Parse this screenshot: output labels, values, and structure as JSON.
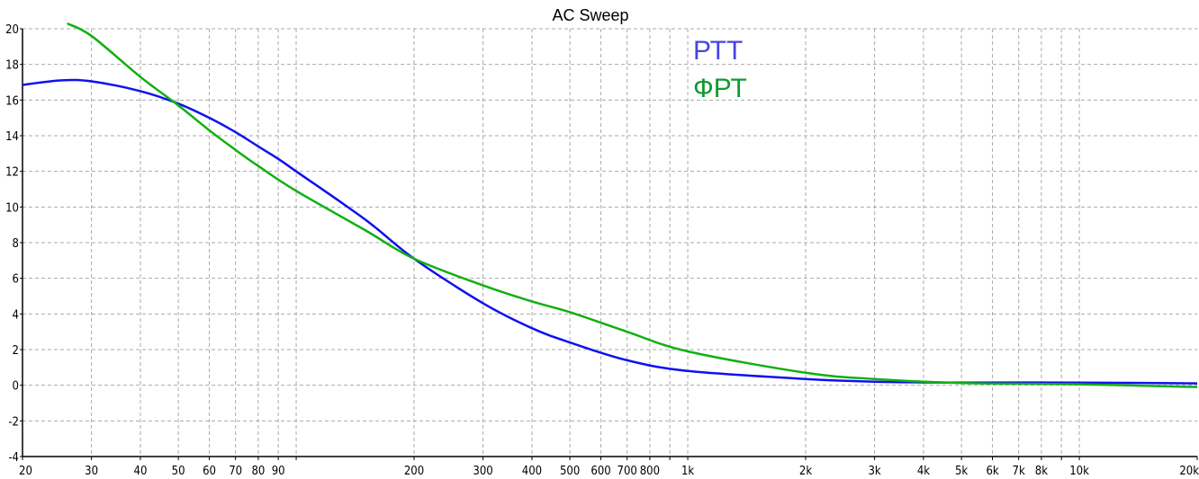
{
  "chart_data": {
    "type": "line",
    "title": "AC Sweep",
    "xscale": "log",
    "xlim": [
      20,
      20000
    ],
    "ylim": [
      -4,
      20
    ],
    "grid": true,
    "legend_placement": "top-center",
    "x_ticks": [
      20,
      30,
      40,
      50,
      60,
      70,
      80,
      90,
      200,
      300,
      400,
      500,
      600,
      700,
      800,
      1000,
      2000,
      3000,
      4000,
      5000,
      6000,
      7000,
      8000,
      10000,
      20000
    ],
    "x_tick_labels": [
      "20",
      "30",
      "40",
      "50",
      "60",
      "70",
      "80",
      "90",
      "200",
      "300",
      "400",
      "500",
      "600",
      "700",
      "800",
      "1k",
      "2k",
      "3k",
      "4k",
      "5k",
      "6k",
      "7k",
      "8k",
      "10k",
      "20k"
    ],
    "x_grid": [
      30,
      40,
      50,
      60,
      70,
      80,
      90,
      100,
      200,
      300,
      400,
      500,
      600,
      700,
      800,
      900,
      1000,
      2000,
      3000,
      4000,
      5000,
      6000,
      7000,
      8000,
      9000,
      10000
    ],
    "y_ticks": [
      20,
      18,
      16,
      14,
      12,
      10,
      8,
      6,
      4,
      2,
      0,
      -2,
      -4
    ],
    "series": [
      {
        "name": "РТТ",
        "color": "#1010f0",
        "legend_color": "#4545e0",
        "x": [
          20,
          25,
          30,
          40,
          50,
          60,
          70,
          80,
          90,
          100,
          150,
          200,
          300,
          400,
          500,
          700,
          1000,
          2000,
          3000,
          5000,
          10000,
          20000
        ],
        "y": [
          16.85,
          17.1,
          17.05,
          16.5,
          15.8,
          15.0,
          14.2,
          13.4,
          12.7,
          12.0,
          9.3,
          7.1,
          4.6,
          3.2,
          2.4,
          1.4,
          0.8,
          0.35,
          0.2,
          0.15,
          0.15,
          0.1
        ]
      },
      {
        "name": "ФРТ",
        "color": "#10b010",
        "legend_color": "#109a30",
        "x": [
          26,
          30,
          40,
          50,
          60,
          70,
          80,
          100,
          150,
          200,
          300,
          400,
          500,
          700,
          1000,
          2000,
          3000,
          5000,
          10000,
          20000
        ],
        "y": [
          20.3,
          19.6,
          17.3,
          15.7,
          14.3,
          13.2,
          12.3,
          10.9,
          8.7,
          7.1,
          5.6,
          4.7,
          4.1,
          3.0,
          1.9,
          0.7,
          0.35,
          0.12,
          0.05,
          -0.1
        ]
      }
    ]
  }
}
